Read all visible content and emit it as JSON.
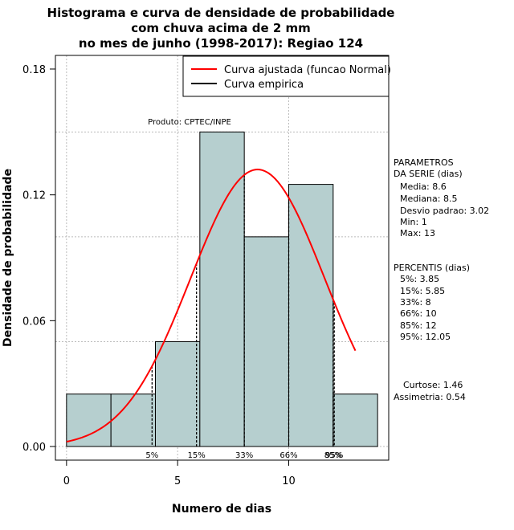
{
  "chart_data": {
    "type": "histogram",
    "title_lines": [
      "Histograma e curva de densidade de probabilidade",
      "com chuva acima de 2 mm",
      "no mes de junho (1998-2017): Regiao 124"
    ],
    "xlabel": "Numero de dias",
    "ylabel": "Densidade de probabilidade",
    "xlim": [
      -0.5,
      14.5
    ],
    "ylim": [
      -0.0065,
      0.1865
    ],
    "x_ticks": [
      0,
      5,
      10
    ],
    "y_ticks": [
      0.0,
      0.06,
      0.12,
      0.18
    ],
    "y_tick_labels": [
      "0.00",
      "0.06",
      "0.12",
      "0.18"
    ],
    "grid_x": [
      0,
      5,
      10
    ],
    "grid_y": [
      0.0,
      0.05,
      0.1,
      0.15
    ],
    "bins": [
      {
        "x0": 0,
        "x1": 2,
        "density": 0.025
      },
      {
        "x0": 2,
        "x1": 4,
        "density": 0.025
      },
      {
        "x0": 4,
        "x1": 6,
        "density": 0.05
      },
      {
        "x0": 6,
        "x1": 8,
        "density": 0.15
      },
      {
        "x0": 8,
        "x1": 10,
        "density": 0.1
      },
      {
        "x0": 10,
        "x1": 12,
        "density": 0.125
      },
      {
        "x0": 12,
        "x1": 14,
        "density": 0.025
      }
    ],
    "bar_color": "#b6cfcf",
    "curve_color": "#ff0000",
    "normal_fit": {
      "mean": 8.6,
      "sd": 3.02,
      "x_from": 0,
      "x_to": 13
    },
    "percentile_lines": [
      {
        "label": "5%",
        "value": 3.85
      },
      {
        "label": "15%",
        "value": 5.85
      },
      {
        "label": "33%",
        "value": 8
      },
      {
        "label": "66%",
        "value": 10
      },
      {
        "label": "85%",
        "value": 12
      },
      {
        "label": "95%",
        "value": 12.05
      }
    ],
    "legend": [
      {
        "label": "Curva ajustada (funcao Normal)",
        "color": "#ff0000"
      },
      {
        "label": "Curva empirica",
        "color": "#000000"
      }
    ],
    "legend_position": "top-right",
    "annotation": "Produto: CPTEC/INPE",
    "side_stats": {
      "params_title_1": "PARAMETROS",
      "params_title_2": "DA SERIE (dias)",
      "params": [
        "Media: 8.6",
        "Mediana: 8.5",
        "Desvio padrao: 3.02",
        "Min: 1",
        "Max: 13"
      ],
      "percentis_title": "PERCENTIS (dias)",
      "percentis": [
        "5%: 3.85",
        "15%: 5.85",
        "33%: 8",
        "66%: 10",
        "85%: 12",
        "95%: 12.05"
      ],
      "curtose": "Curtose: 1.46",
      "assimetria": "Assimetria: 0.54"
    }
  }
}
